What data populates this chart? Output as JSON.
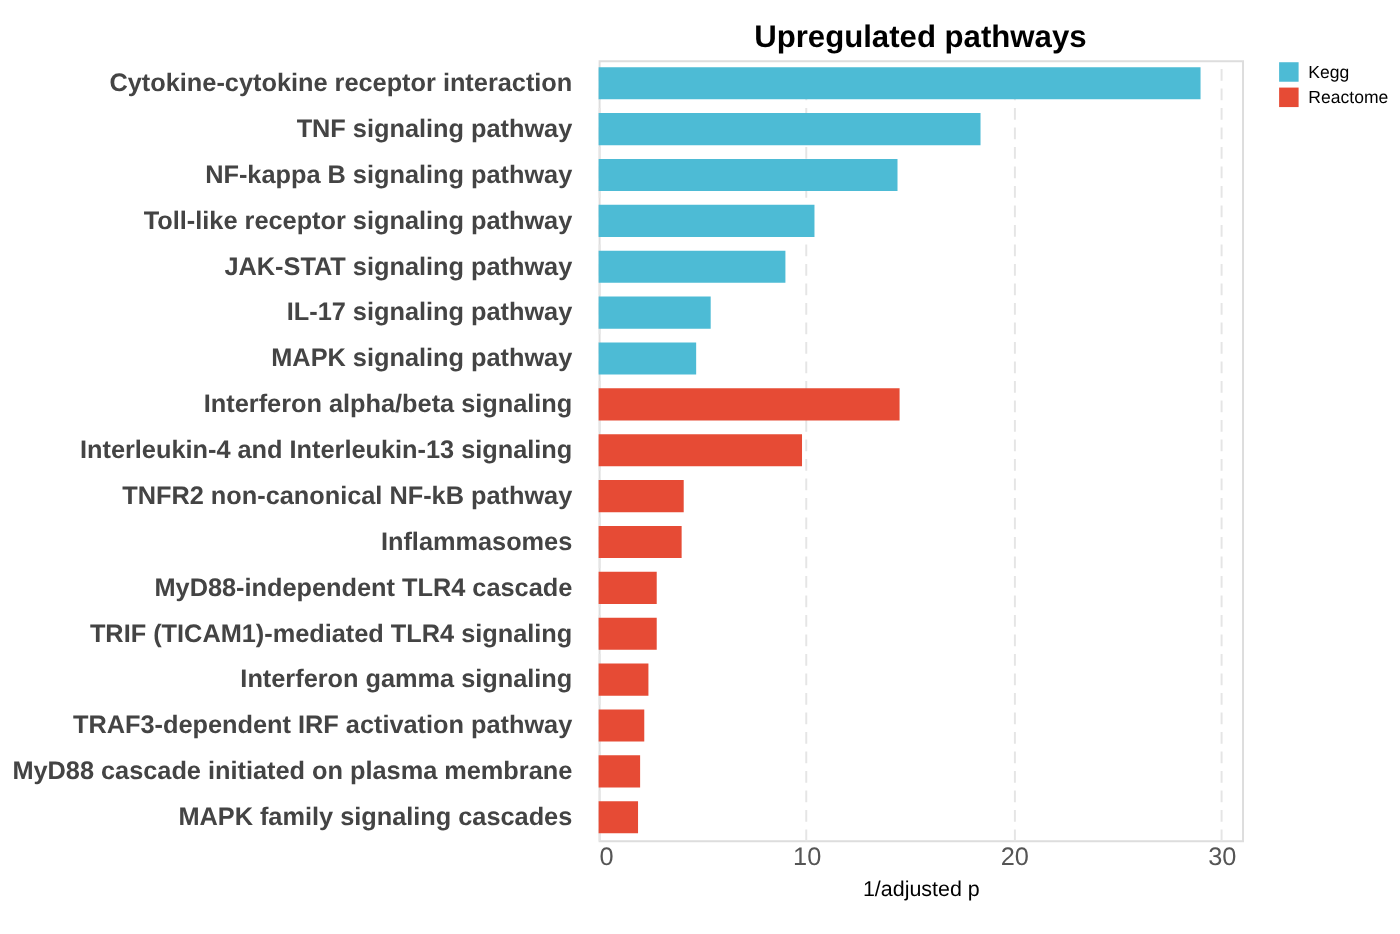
{
  "chart_data": {
    "type": "bar",
    "orientation": "horizontal",
    "title": "Upregulated pathways",
    "xlabel": "1/adjusted p",
    "categories": [
      "Cytokine-cytokine receptor interaction",
      "TNF signaling pathway",
      "NF-kappa B signaling pathway",
      "Toll-like receptor signaling pathway",
      "JAK-STAT signaling pathway",
      "IL-17 signaling pathway",
      "MAPK signaling pathway",
      "Interferon alpha/beta signaling",
      "Interleukin-4 and Interleukin-13 signaling",
      "TNFR2 non-canonical NF-kB pathway",
      "Inflammasomes",
      "MyD88-independent TLR4 cascade",
      "TRIF (TICAM1)-mediated TLR4 signaling",
      "Interferon gamma signaling",
      "TRAF3-dependent IRF activation pathway",
      "MyD88 cascade initiated on plasma membrane",
      "MAPK family signaling cascades"
    ],
    "series": [
      {
        "name": "Kegg",
        "color": "#4dbbd5",
        "values": [
          29.0,
          18.4,
          14.4,
          10.4,
          9.0,
          5.4,
          4.7,
          null,
          null,
          null,
          null,
          null,
          null,
          null,
          null,
          null,
          null
        ]
      },
      {
        "name": "Reactome",
        "color": "#e64b35",
        "values": [
          null,
          null,
          null,
          null,
          null,
          null,
          null,
          14.5,
          9.8,
          4.1,
          4.0,
          2.8,
          2.8,
          2.4,
          2.2,
          2.0,
          1.9
        ]
      }
    ],
    "xlim": [
      0,
      31
    ],
    "xticks": [
      0,
      10,
      20,
      30
    ],
    "grid": "x",
    "legend": "right"
  }
}
